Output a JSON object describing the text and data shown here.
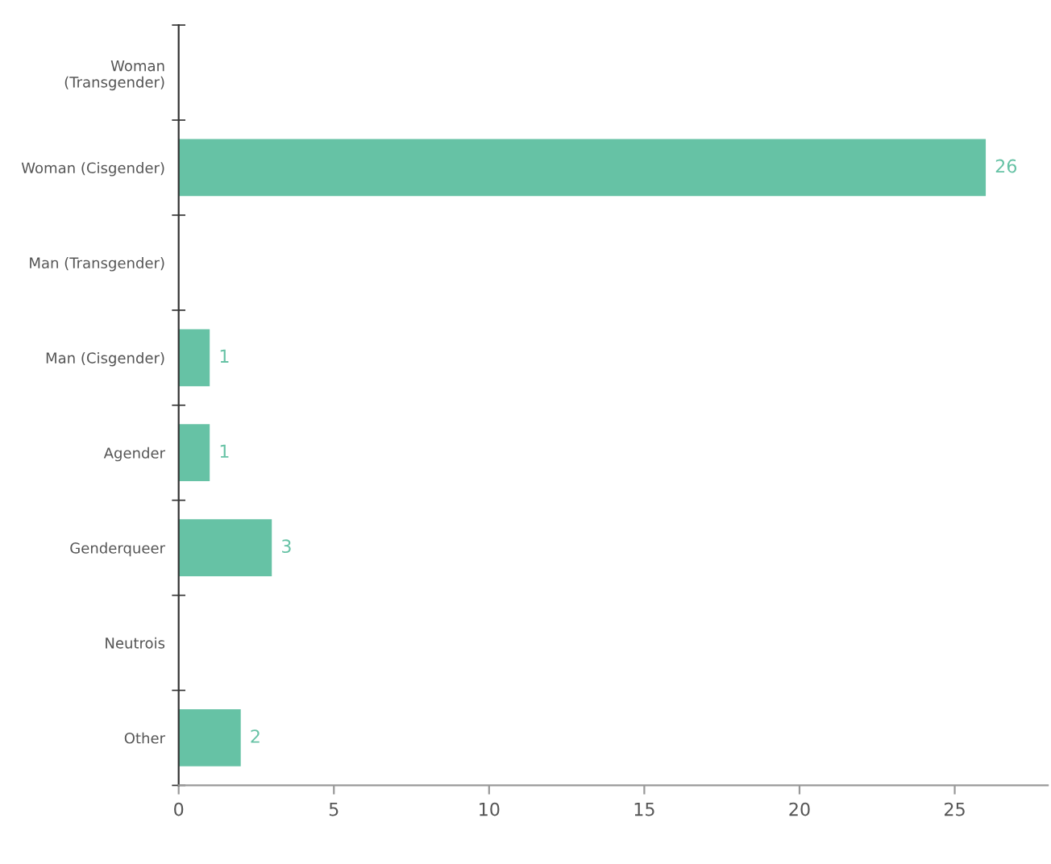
{
  "chart_data": {
    "type": "bar",
    "orientation": "horizontal",
    "categories": [
      "Woman\n(Transgender)",
      "Woman (Cisgender)",
      "Man (Transgender)",
      "Man (Cisgender)",
      "Agender",
      "Genderqueer",
      "Neutrois",
      "Other"
    ],
    "values": [
      0,
      26,
      0,
      1,
      1,
      3,
      0,
      2
    ],
    "value_labels": [
      null,
      "26",
      null,
      "1",
      "1",
      "3",
      null,
      "2"
    ],
    "color": "#66c2a5",
    "xlim": [
      0,
      28
    ],
    "xticks": [
      0,
      5,
      10,
      15,
      20,
      25
    ],
    "grid": false,
    "legend": false
  }
}
